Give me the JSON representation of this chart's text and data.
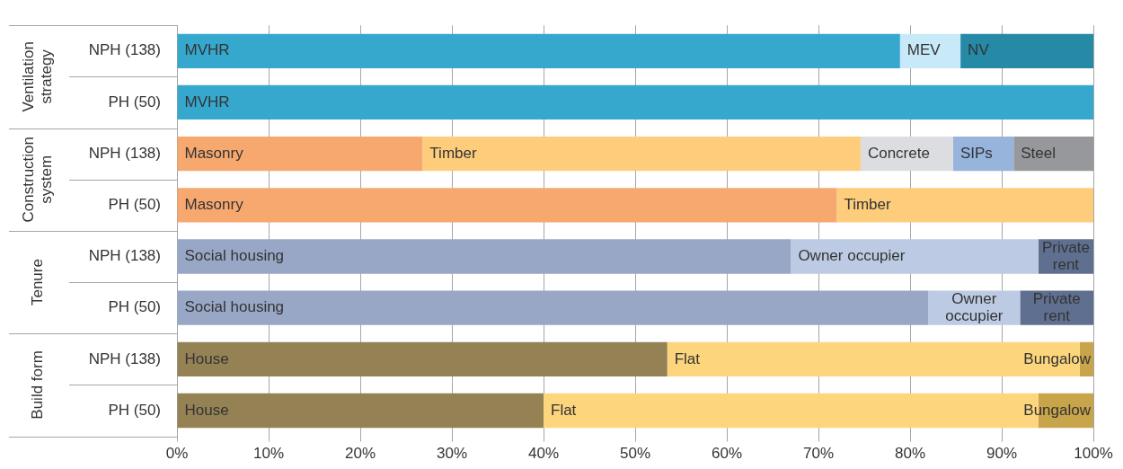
{
  "chart_data": {
    "type": "bar",
    "orientation": "horizontal",
    "stacked": true,
    "grid": "x",
    "categories": [
      "NPH (138)",
      "PH (50)",
      "NPH (138)",
      "PH (50)",
      "NPH (138)",
      "PH (50)",
      "NPH (138)",
      "PH (50)"
    ],
    "annotations": [
      "Ventilation strategy",
      "Construction system",
      "Tenure",
      "Build form"
    ],
    "xlim": [
      0,
      100
    ],
    "xticks": [
      {
        "value": 0,
        "label": "0%"
      },
      {
        "value": 10,
        "label": "10%"
      },
      {
        "value": 20,
        "label": "20%"
      },
      {
        "value": 30,
        "label": "30%"
      },
      {
        "value": 40,
        "label": "40%"
      },
      {
        "value": 50,
        "label": "50%"
      },
      {
        "value": 60,
        "label": "60%"
      },
      {
        "value": 70,
        "label": "70%"
      },
      {
        "value": 80,
        "label": "80%"
      },
      {
        "value": 90,
        "label": "90%"
      },
      {
        "value": 100,
        "label": "100%"
      }
    ],
    "series": [
      {
        "name": "MVHR",
        "color": "#36a8ce",
        "values": [
          78.9,
          100,
          null,
          null,
          null,
          null,
          null,
          null
        ]
      },
      {
        "name": "MEV",
        "color": "#c8e9f8",
        "values": [
          6.6,
          null,
          null,
          null,
          null,
          null,
          null,
          null
        ]
      },
      {
        "name": "NV",
        "color": "#2689a6",
        "values": [
          14.5,
          null,
          null,
          null,
          null,
          null,
          null,
          null
        ]
      },
      {
        "name": "Masonry",
        "color": "#f7a86f",
        "values": [
          null,
          null,
          26.8,
          72.0,
          null,
          null,
          null,
          null
        ]
      },
      {
        "name": "Timber",
        "color": "#fdcd7c",
        "values": [
          null,
          null,
          47.8,
          28.0,
          null,
          null,
          null,
          null
        ]
      },
      {
        "name": "Concrete",
        "color": "#dcdde0",
        "values": [
          null,
          null,
          10.1,
          null,
          null,
          null,
          null,
          null
        ]
      },
      {
        "name": "SIPs",
        "color": "#96b4dc",
        "values": [
          null,
          null,
          6.6,
          null,
          null,
          null,
          null,
          null
        ]
      },
      {
        "name": "Steel",
        "color": "#97989b",
        "values": [
          null,
          null,
          8.7,
          null,
          null,
          null,
          null,
          null
        ]
      },
      {
        "name": "Social housing",
        "color": "#98a7c6",
        "values": [
          null,
          null,
          null,
          null,
          67.0,
          82.0,
          null,
          null
        ]
      },
      {
        "name": "Owner occupier",
        "color": "#bccbe3",
        "values": [
          null,
          null,
          null,
          null,
          27.0,
          10.0,
          null,
          null
        ]
      },
      {
        "name": "Private rent",
        "color": "#5f6f8f",
        "values": [
          null,
          null,
          null,
          null,
          6.0,
          8.0,
          null,
          null
        ]
      },
      {
        "name": "House",
        "color": "#958254",
        "values": [
          null,
          null,
          null,
          null,
          null,
          null,
          53.5,
          40.0
        ]
      },
      {
        "name": "Flat",
        "color": "#fdd57d",
        "values": [
          null,
          null,
          null,
          null,
          null,
          null,
          45.0,
          54.0
        ]
      },
      {
        "name": "Bungalow",
        "color": "#c8a44a",
        "values": [
          null,
          null,
          null,
          null,
          null,
          null,
          1.5,
          6.0
        ]
      }
    ]
  }
}
